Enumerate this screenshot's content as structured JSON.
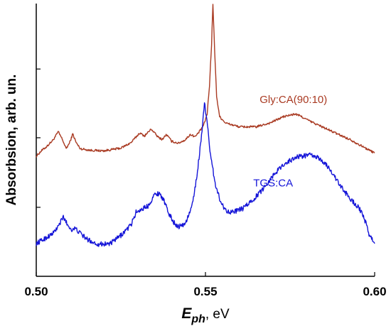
{
  "chart_data": {
    "type": "line",
    "title": "",
    "xlabel_main": "E",
    "xlabel_sub": "ph",
    "xlabel_unit": ", eV",
    "ylabel": "Absorbsion, arb. un.",
    "xlim": [
      0.5,
      0.6
    ],
    "ylim": [
      0,
      1
    ],
    "x_ticks": [
      {
        "value": 0.5,
        "label": "0.50"
      },
      {
        "value": 0.55,
        "label": "0.55"
      },
      {
        "value": 0.6,
        "label": "0.60"
      }
    ],
    "y_minor_ticks": [
      0.253,
      0.508,
      0.76
    ],
    "grid": false,
    "legend": "inline labels",
    "series": [
      {
        "name": "Gly:CA(90:10)",
        "color": "#a93a22",
        "label_at": [
          0.576,
          0.635
        ],
        "noise": 0.004,
        "points": [
          [
            0.5,
            0.44
          ],
          [
            0.5015,
            0.46
          ],
          [
            0.503,
            0.475
          ],
          [
            0.505,
            0.5
          ],
          [
            0.5065,
            0.53
          ],
          [
            0.5078,
            0.5
          ],
          [
            0.5088,
            0.468
          ],
          [
            0.5098,
            0.488
          ],
          [
            0.5108,
            0.522
          ],
          [
            0.5118,
            0.49
          ],
          [
            0.513,
            0.468
          ],
          [
            0.516,
            0.462
          ],
          [
            0.52,
            0.46
          ],
          [
            0.525,
            0.47
          ],
          [
            0.528,
            0.49
          ],
          [
            0.5305,
            0.525
          ],
          [
            0.532,
            0.515
          ],
          [
            0.534,
            0.54
          ],
          [
            0.536,
            0.51
          ],
          [
            0.5372,
            0.502
          ],
          [
            0.5385,
            0.52
          ],
          [
            0.54,
            0.495
          ],
          [
            0.542,
            0.488
          ],
          [
            0.544,
            0.5
          ],
          [
            0.5455,
            0.52
          ],
          [
            0.547,
            0.512
          ],
          [
            0.5485,
            0.535
          ],
          [
            0.5495,
            0.555
          ],
          [
            0.5505,
            0.595
          ],
          [
            0.5512,
            0.7
          ],
          [
            0.5518,
            0.85
          ],
          [
            0.5522,
            1.0
          ],
          [
            0.5527,
            0.83
          ],
          [
            0.5533,
            0.66
          ],
          [
            0.5542,
            0.585
          ],
          [
            0.556,
            0.562
          ],
          [
            0.56,
            0.548
          ],
          [
            0.565,
            0.548
          ],
          [
            0.569,
            0.562
          ],
          [
            0.573,
            0.585
          ],
          [
            0.5765,
            0.595
          ],
          [
            0.578,
            0.588
          ],
          [
            0.581,
            0.568
          ],
          [
            0.585,
            0.545
          ],
          [
            0.589,
            0.522
          ],
          [
            0.593,
            0.5
          ],
          [
            0.597,
            0.472
          ],
          [
            0.6,
            0.452
          ]
        ]
      },
      {
        "name": "TGS:CA",
        "color": "#1515d8",
        "label_at": [
          0.57,
          0.33
        ],
        "noise": 0.009,
        "points": [
          [
            0.5,
            0.12
          ],
          [
            0.503,
            0.142
          ],
          [
            0.505,
            0.158
          ],
          [
            0.5065,
            0.183
          ],
          [
            0.508,
            0.218
          ],
          [
            0.5092,
            0.19
          ],
          [
            0.5103,
            0.172
          ],
          [
            0.5115,
            0.175
          ],
          [
            0.5128,
            0.16
          ],
          [
            0.515,
            0.136
          ],
          [
            0.518,
            0.118
          ],
          [
            0.522,
            0.12
          ],
          [
            0.525,
            0.15
          ],
          [
            0.528,
            0.188
          ],
          [
            0.5295,
            0.235
          ],
          [
            0.531,
            0.245
          ],
          [
            0.533,
            0.258
          ],
          [
            0.535,
            0.3
          ],
          [
            0.5365,
            0.305
          ],
          [
            0.5378,
            0.275
          ],
          [
            0.539,
            0.235
          ],
          [
            0.5405,
            0.2
          ],
          [
            0.542,
            0.182
          ],
          [
            0.544,
            0.192
          ],
          [
            0.546,
            0.255
          ],
          [
            0.5475,
            0.37
          ],
          [
            0.5487,
            0.5
          ],
          [
            0.5497,
            0.635
          ],
          [
            0.5506,
            0.56
          ],
          [
            0.5515,
            0.44
          ],
          [
            0.553,
            0.335
          ],
          [
            0.5545,
            0.272
          ],
          [
            0.556,
            0.242
          ],
          [
            0.558,
            0.235
          ],
          [
            0.561,
            0.248
          ],
          [
            0.564,
            0.28
          ],
          [
            0.567,
            0.32
          ],
          [
            0.57,
            0.37
          ],
          [
            0.573,
            0.41
          ],
          [
            0.577,
            0.438
          ],
          [
            0.581,
            0.445
          ],
          [
            0.584,
            0.43
          ],
          [
            0.587,
            0.39
          ],
          [
            0.59,
            0.328
          ],
          [
            0.593,
            0.282
          ],
          [
            0.5955,
            0.248
          ],
          [
            0.597,
            0.21
          ],
          [
            0.5985,
            0.15
          ],
          [
            0.6,
            0.12
          ]
        ]
      }
    ]
  }
}
